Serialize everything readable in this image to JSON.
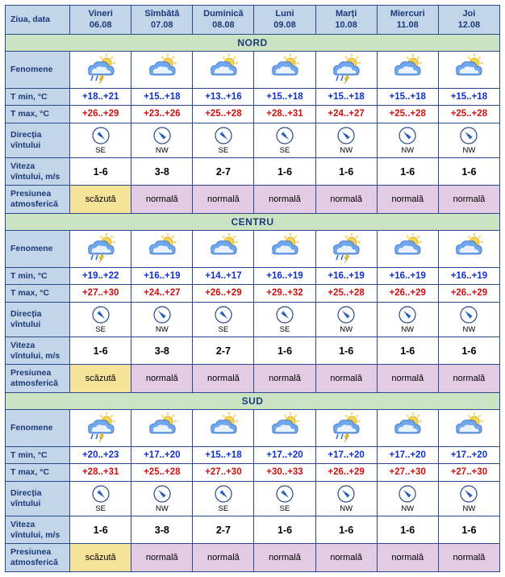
{
  "header_label": "Ziua, data",
  "days": [
    {
      "name": "Vineri",
      "date": "06.08"
    },
    {
      "name": "Sîmbătă",
      "date": "07.08"
    },
    {
      "name": "Duminică",
      "date": "08.08"
    },
    {
      "name": "Luni",
      "date": "09.08"
    },
    {
      "name": "Marți",
      "date": "10.08"
    },
    {
      "name": "Miercuri",
      "date": "11.08"
    },
    {
      "name": "Joi",
      "date": "12.08"
    }
  ],
  "row_labels": {
    "fenomene": "Fenomene",
    "tmin": "T min, °C",
    "tmax": "T max, °C",
    "wind_dir": "Direcția vîntului",
    "wind_speed": "Viteza vîntului, m/s",
    "pressure": "Presiunea atmosferică"
  },
  "pressure_labels": {
    "low": "scăzută",
    "normal": "normală"
  },
  "colors": {
    "header_bg": "#c3d5e8",
    "header_fg": "#1a3a7a",
    "region_bg": "#cce3c3",
    "border": "#2a4a8a",
    "tmin": "#1030d0",
    "tmax": "#d01010",
    "press_low_bg": "#f6e39a",
    "press_norm_bg": "#e3cce3",
    "cloud": "#6fa8f0",
    "cloud2": "#ffffff",
    "sun": "#f8d54a",
    "rain": "#3a6ad0",
    "compass_ring": "#2a4a8a",
    "compass_needle": "#2a6ad0"
  },
  "icons": {
    "storm": {
      "sun": true,
      "cloud": true,
      "rain": true,
      "lightning": true
    },
    "sun_cloud": {
      "sun": true,
      "cloud": true,
      "rain": false,
      "lightning": false
    },
    "storm_light": {
      "sun": true,
      "cloud": true,
      "rain": true,
      "lightning": true
    }
  },
  "regions": [
    {
      "name": "NORD",
      "days": [
        {
          "icon": "storm",
          "tmin": "+18..+21",
          "tmax": "+26..+29",
          "wind_dir": "SE",
          "wind_angle": 135,
          "speed": "1-6",
          "pressure": "low"
        },
        {
          "icon": "sun_cloud",
          "tmin": "+15..+18",
          "tmax": "+23..+26",
          "wind_dir": "NW",
          "wind_angle": 315,
          "speed": "3-8",
          "pressure": "normal"
        },
        {
          "icon": "sun_cloud",
          "tmin": "+13..+16",
          "tmax": "+25..+28",
          "wind_dir": "SE",
          "wind_angle": 135,
          "speed": "2-7",
          "pressure": "normal"
        },
        {
          "icon": "sun_cloud",
          "tmin": "+15..+18",
          "tmax": "+28..+31",
          "wind_dir": "SE",
          "wind_angle": 135,
          "speed": "1-6",
          "pressure": "normal"
        },
        {
          "icon": "storm_light",
          "tmin": "+15..+18",
          "tmax": "+24..+27",
          "wind_dir": "NW",
          "wind_angle": 315,
          "speed": "1-6",
          "pressure": "normal"
        },
        {
          "icon": "sun_cloud",
          "tmin": "+15..+18",
          "tmax": "+25..+28",
          "wind_dir": "NW",
          "wind_angle": 315,
          "speed": "1-6",
          "pressure": "normal"
        },
        {
          "icon": "sun_cloud",
          "tmin": "+15..+18",
          "tmax": "+25..+28",
          "wind_dir": "NW",
          "wind_angle": 315,
          "speed": "1-6",
          "pressure": "normal"
        }
      ]
    },
    {
      "name": "CENTRU",
      "days": [
        {
          "icon": "storm",
          "tmin": "+19..+22",
          "tmax": "+27..+30",
          "wind_dir": "SE",
          "wind_angle": 135,
          "speed": "1-6",
          "pressure": "low"
        },
        {
          "icon": "sun_cloud",
          "tmin": "+16..+19",
          "tmax": "+24..+27",
          "wind_dir": "NW",
          "wind_angle": 315,
          "speed": "3-8",
          "pressure": "normal"
        },
        {
          "icon": "sun_cloud",
          "tmin": "+14..+17",
          "tmax": "+26..+29",
          "wind_dir": "SE",
          "wind_angle": 135,
          "speed": "2-7",
          "pressure": "normal"
        },
        {
          "icon": "sun_cloud",
          "tmin": "+16..+19",
          "tmax": "+29..+32",
          "wind_dir": "SE",
          "wind_angle": 135,
          "speed": "1-6",
          "pressure": "normal"
        },
        {
          "icon": "storm_light",
          "tmin": "+16..+19",
          "tmax": "+25..+28",
          "wind_dir": "NW",
          "wind_angle": 315,
          "speed": "1-6",
          "pressure": "normal"
        },
        {
          "icon": "sun_cloud",
          "tmin": "+16..+19",
          "tmax": "+26..+29",
          "wind_dir": "NW",
          "wind_angle": 315,
          "speed": "1-6",
          "pressure": "normal"
        },
        {
          "icon": "sun_cloud",
          "tmin": "+16..+19",
          "tmax": "+26..+29",
          "wind_dir": "NW",
          "wind_angle": 315,
          "speed": "1-6",
          "pressure": "normal"
        }
      ]
    },
    {
      "name": "SUD",
      "days": [
        {
          "icon": "storm",
          "tmin": "+20..+23",
          "tmax": "+28..+31",
          "wind_dir": "SE",
          "wind_angle": 135,
          "speed": "1-6",
          "pressure": "low"
        },
        {
          "icon": "sun_cloud",
          "tmin": "+17..+20",
          "tmax": "+25..+28",
          "wind_dir": "NW",
          "wind_angle": 315,
          "speed": "3-8",
          "pressure": "normal"
        },
        {
          "icon": "sun_cloud",
          "tmin": "+15..+18",
          "tmax": "+27..+30",
          "wind_dir": "SE",
          "wind_angle": 135,
          "speed": "2-7",
          "pressure": "normal"
        },
        {
          "icon": "sun_cloud",
          "tmin": "+17..+20",
          "tmax": "+30..+33",
          "wind_dir": "SE",
          "wind_angle": 135,
          "speed": "1-6",
          "pressure": "normal"
        },
        {
          "icon": "storm_light",
          "tmin": "+17..+20",
          "tmax": "+26..+29",
          "wind_dir": "NW",
          "wind_angle": 315,
          "speed": "1-6",
          "pressure": "normal"
        },
        {
          "icon": "sun_cloud",
          "tmin": "+17..+20",
          "tmax": "+27..+30",
          "wind_dir": "NW",
          "wind_angle": 315,
          "speed": "1-6",
          "pressure": "normal"
        },
        {
          "icon": "sun_cloud",
          "tmin": "+17..+20",
          "tmax": "+27..+30",
          "wind_dir": "NW",
          "wind_angle": 315,
          "speed": "1-6",
          "pressure": "normal"
        }
      ]
    }
  ]
}
